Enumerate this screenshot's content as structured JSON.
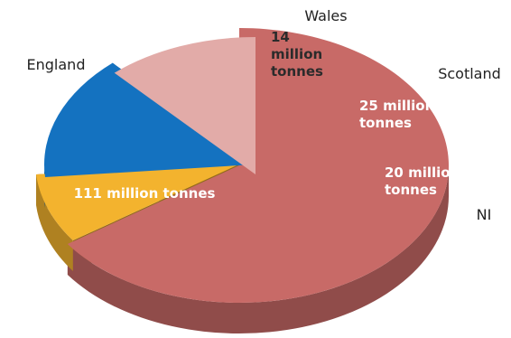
{
  "chart_data": {
    "type": "pie",
    "categories": [
      "England",
      "Wales",
      "Scotland",
      "NI"
    ],
    "values": [
      111,
      14,
      25,
      20
    ],
    "unit": "million tonnes",
    "value_labels": [
      [
        "111 million tonnes"
      ],
      [
        "14",
        "million",
        "tonnes"
      ],
      [
        "25 million",
        "tonnes"
      ],
      [
        "20 million",
        "tonnes"
      ]
    ],
    "colors": {
      "England": "#c86a67",
      "Wales": "#f3b32e",
      "Scotland": "#1472c0",
      "NI": "#e2aba8"
    },
    "label_colors": {
      "England": "#ffffff",
      "Wales": "#2b2b2b",
      "Scotland": "#ffffff",
      "NI": "#ffffff"
    },
    "exploded": [
      "Wales",
      "Scotland",
      "NI"
    ],
    "style": "3d"
  }
}
